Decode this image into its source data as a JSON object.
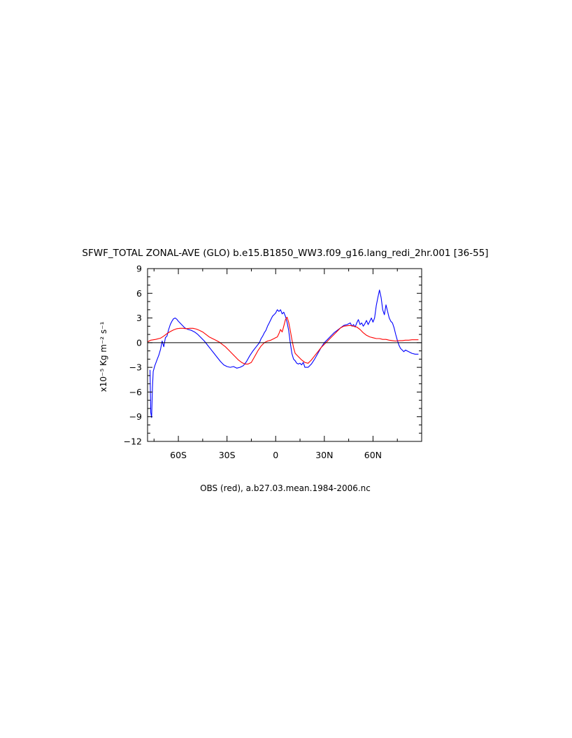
{
  "chart_data": {
    "type": "line",
    "title": "SFWF_TOTAL ZONAL-AVE (GLO) b.e15.B1850_WW3.f09_g16.lang_redi_2hr.001 [36-55]",
    "subtitle": "OBS (red), a.b27.03.mean.1984-2006.nc",
    "ylabel": "x10⁻⁵ Kg m⁻² s⁻¹",
    "xlim": [
      -79,
      90
    ],
    "ylim": [
      -12,
      9
    ],
    "xticks": [
      {
        "value": -60,
        "label": "60S"
      },
      {
        "value": -30,
        "label": "30S"
      },
      {
        "value": 0,
        "label": "0"
      },
      {
        "value": 30,
        "label": "30N"
      },
      {
        "value": 60,
        "label": "60N"
      }
    ],
    "yticks": [
      {
        "value": 9,
        "label": "9"
      },
      {
        "value": 6,
        "label": "6"
      },
      {
        "value": 3,
        "label": "3"
      },
      {
        "value": 0,
        "label": "0"
      },
      {
        "value": -3,
        "label": "-3"
      },
      {
        "value": -6,
        "label": "-6"
      },
      {
        "value": -9,
        "label": "-9"
      },
      {
        "value": -12,
        "label": "-12"
      }
    ],
    "zero_line": true,
    "series": [
      {
        "color": "#0000ff",
        "points": [
          [
            -77.5,
            -3.3
          ],
          [
            -77,
            -8.5
          ],
          [
            -76.5,
            -9.1
          ],
          [
            -76,
            -5.5
          ],
          [
            -75.5,
            -3.5
          ],
          [
            -74.5,
            -2.8
          ],
          [
            -73,
            -2
          ],
          [
            -72,
            -1.5
          ],
          [
            -71,
            -0.8
          ],
          [
            -70,
            0.2
          ],
          [
            -69,
            -0.5
          ],
          [
            -68,
            0.6
          ],
          [
            -67,
            0.8
          ],
          [
            -66,
            1.6
          ],
          [
            -65,
            2.2
          ],
          [
            -64,
            2.6
          ],
          [
            -63,
            2.9
          ],
          [
            -62,
            3
          ],
          [
            -61,
            2.85
          ],
          [
            -60,
            2.6
          ],
          [
            -58,
            2.2
          ],
          [
            -56,
            1.8
          ],
          [
            -54,
            1.6
          ],
          [
            -52,
            1.5
          ],
          [
            -50,
            1.3
          ],
          [
            -48,
            1
          ],
          [
            -46,
            0.6
          ],
          [
            -44,
            0.2
          ],
          [
            -42,
            -0.3
          ],
          [
            -40,
            -0.8
          ],
          [
            -38,
            -1.3
          ],
          [
            -36,
            -1.8
          ],
          [
            -34,
            -2.3
          ],
          [
            -32,
            -2.7
          ],
          [
            -30,
            -2.9
          ],
          [
            -28,
            -3
          ],
          [
            -26,
            -2.9
          ],
          [
            -24,
            -3.1
          ],
          [
            -22,
            -3
          ],
          [
            -20,
            -2.8
          ],
          [
            -18,
            -2.3
          ],
          [
            -16,
            -1.6
          ],
          [
            -14,
            -1
          ],
          [
            -12,
            -0.5
          ],
          [
            -10,
            0
          ],
          [
            -9,
            0.5
          ],
          [
            -8,
            0.8
          ],
          [
            -7,
            1.2
          ],
          [
            -6,
            1.5
          ],
          [
            -5,
            2
          ],
          [
            -4,
            2.4
          ],
          [
            -3,
            2.8
          ],
          [
            -2,
            3.2
          ],
          [
            -1,
            3.4
          ],
          [
            0,
            3.6
          ],
          [
            1,
            4
          ],
          [
            2,
            3.8
          ],
          [
            3,
            4
          ],
          [
            4,
            3.5
          ],
          [
            5,
            3.7
          ],
          [
            6,
            3.2
          ],
          [
            7,
            2.5
          ],
          [
            8,
            1.5
          ],
          [
            9,
            0
          ],
          [
            10,
            -1.3
          ],
          [
            11,
            -2
          ],
          [
            12,
            -2.2
          ],
          [
            13,
            -2.5
          ],
          [
            14,
            -2.6
          ],
          [
            15,
            -2.5
          ],
          [
            16,
            -2.7
          ],
          [
            17,
            -2.4
          ],
          [
            18,
            -3
          ],
          [
            19,
            -3
          ],
          [
            20,
            -3
          ],
          [
            21,
            -2.8
          ],
          [
            22,
            -2.6
          ],
          [
            24,
            -2
          ],
          [
            26,
            -1.3
          ],
          [
            28,
            -0.6
          ],
          [
            30,
            0
          ],
          [
            32,
            0.4
          ],
          [
            34,
            0.8
          ],
          [
            36,
            1.2
          ],
          [
            38,
            1.5
          ],
          [
            40,
            1.8
          ],
          [
            42,
            2.1
          ],
          [
            44,
            2.2
          ],
          [
            46,
            2.4
          ],
          [
            47,
            2
          ],
          [
            48,
            2.2
          ],
          [
            49,
            1.9
          ],
          [
            50,
            2.4
          ],
          [
            51,
            2.8
          ],
          [
            52,
            2.2
          ],
          [
            53,
            2.4
          ],
          [
            54,
            2
          ],
          [
            55,
            2.3
          ],
          [
            56,
            2.7
          ],
          [
            57,
            2.2
          ],
          [
            58,
            2.6
          ],
          [
            59,
            3
          ],
          [
            60,
            2.5
          ],
          [
            61,
            3
          ],
          [
            62,
            4.5
          ],
          [
            63,
            5.5
          ],
          [
            64,
            6.4
          ],
          [
            65,
            5.5
          ],
          [
            66,
            4
          ],
          [
            67,
            3.4
          ],
          [
            68,
            4.6
          ],
          [
            69,
            3.8
          ],
          [
            70,
            3
          ],
          [
            71,
            2.6
          ],
          [
            72,
            2.4
          ],
          [
            73,
            1.8
          ],
          [
            74,
            1
          ],
          [
            75,
            0.3
          ],
          [
            76,
            -0.3
          ],
          [
            77,
            -0.7
          ],
          [
            78,
            -0.9
          ],
          [
            79,
            -1.1
          ],
          [
            80,
            -0.9
          ],
          [
            82,
            -1.1
          ],
          [
            84,
            -1.3
          ],
          [
            86,
            -1.4
          ],
          [
            88,
            -1.4
          ]
        ]
      },
      {
        "color": "#ff0000",
        "points": [
          [
            -79,
            0.1
          ],
          [
            -77,
            0.3
          ],
          [
            -74,
            0.4
          ],
          [
            -71,
            0.55
          ],
          [
            -69,
            0.8
          ],
          [
            -67,
            1.1
          ],
          [
            -65,
            1.35
          ],
          [
            -63,
            1.55
          ],
          [
            -61,
            1.7
          ],
          [
            -59,
            1.75
          ],
          [
            -57,
            1.75
          ],
          [
            -55,
            1.7
          ],
          [
            -53,
            1.75
          ],
          [
            -51,
            1.75
          ],
          [
            -49,
            1.65
          ],
          [
            -47,
            1.5
          ],
          [
            -45,
            1.3
          ],
          [
            -43,
            1
          ],
          [
            -41,
            0.7
          ],
          [
            -39,
            0.5
          ],
          [
            -37,
            0.3
          ],
          [
            -35,
            0.1
          ],
          [
            -33,
            -0.2
          ],
          [
            -31,
            -0.5
          ],
          [
            -29,
            -0.9
          ],
          [
            -27,
            -1.3
          ],
          [
            -25,
            -1.7
          ],
          [
            -23,
            -2.1
          ],
          [
            -21,
            -2.4
          ],
          [
            -19,
            -2.6
          ],
          [
            -17,
            -2.6
          ],
          [
            -15,
            -2.4
          ],
          [
            -13,
            -1.7
          ],
          [
            -11,
            -1
          ],
          [
            -9,
            -0.4
          ],
          [
            -7,
            0
          ],
          [
            -5,
            0.2
          ],
          [
            -3,
            0.3
          ],
          [
            -1,
            0.5
          ],
          [
            0,
            0.6
          ],
          [
            1,
            0.7
          ],
          [
            2,
            1.1
          ],
          [
            3,
            1.6
          ],
          [
            4,
            1.3
          ],
          [
            5,
            2
          ],
          [
            6,
            2.8
          ],
          [
            7,
            3.1
          ],
          [
            8,
            2.5
          ],
          [
            9,
            1.5
          ],
          [
            10,
            0.4
          ],
          [
            11,
            -0.6
          ],
          [
            12,
            -1.3
          ],
          [
            14,
            -1.7
          ],
          [
            16,
            -2.1
          ],
          [
            18,
            -2.4
          ],
          [
            20,
            -2.5
          ],
          [
            22,
            -2.1
          ],
          [
            24,
            -1.6
          ],
          [
            26,
            -1.1
          ],
          [
            28,
            -0.6
          ],
          [
            30,
            -0.2
          ],
          [
            32,
            0.2
          ],
          [
            34,
            0.6
          ],
          [
            36,
            1
          ],
          [
            38,
            1.4
          ],
          [
            40,
            1.8
          ],
          [
            42,
            2
          ],
          [
            44,
            2.05
          ],
          [
            46,
            2.1
          ],
          [
            48,
            2
          ],
          [
            50,
            1.9
          ],
          [
            52,
            1.6
          ],
          [
            54,
            1.2
          ],
          [
            56,
            0.9
          ],
          [
            58,
            0.7
          ],
          [
            60,
            0.6
          ],
          [
            62,
            0.5
          ],
          [
            64,
            0.5
          ],
          [
            66,
            0.4
          ],
          [
            68,
            0.4
          ],
          [
            70,
            0.3
          ],
          [
            72,
            0.25
          ],
          [
            74,
            0.2
          ],
          [
            76,
            0.25
          ],
          [
            78,
            0.25
          ],
          [
            80,
            0.3
          ],
          [
            82,
            0.3
          ],
          [
            84,
            0.35
          ],
          [
            88,
            0.35
          ]
        ]
      }
    ]
  }
}
